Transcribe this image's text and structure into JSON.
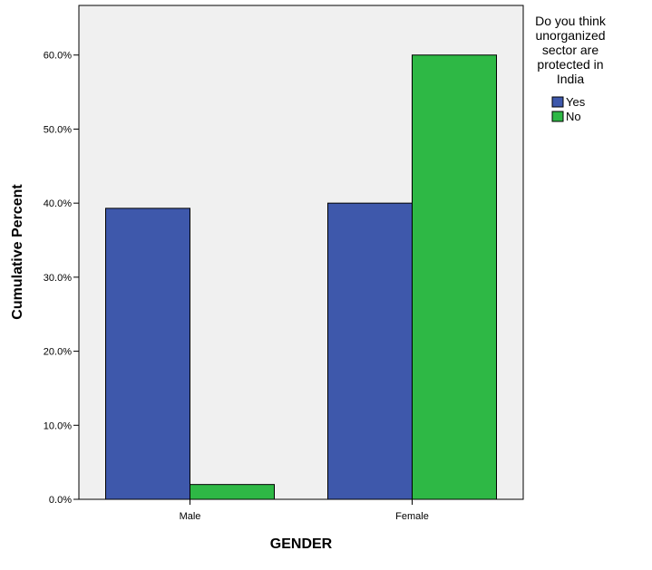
{
  "chart_data": {
    "type": "bar",
    "xlabel": "GENDER",
    "ylabel": "Cumulative Percent",
    "categories": [
      "Male",
      "Female"
    ],
    "series": [
      {
        "name": "Yes",
        "color": "#3E58AB",
        "values": [
          39.3,
          40.0
        ]
      },
      {
        "name": "No",
        "color": "#2EB845",
        "values": [
          2.0,
          60.0
        ]
      }
    ],
    "ylim": [
      0,
      66.7
    ],
    "yticks": [
      0,
      10,
      20,
      30,
      40,
      50,
      60
    ],
    "ytick_labels": [
      "0.0%",
      "10.0%",
      "20.0%",
      "30.0%",
      "40.0%",
      "50.0%",
      "60.0%"
    ],
    "legend": {
      "title_lines": [
        "Do you think",
        "unorganized",
        "sector are",
        "protected in",
        "India"
      ],
      "placement": "right"
    },
    "grid": false,
    "plot_background": "#F0F0F0"
  }
}
